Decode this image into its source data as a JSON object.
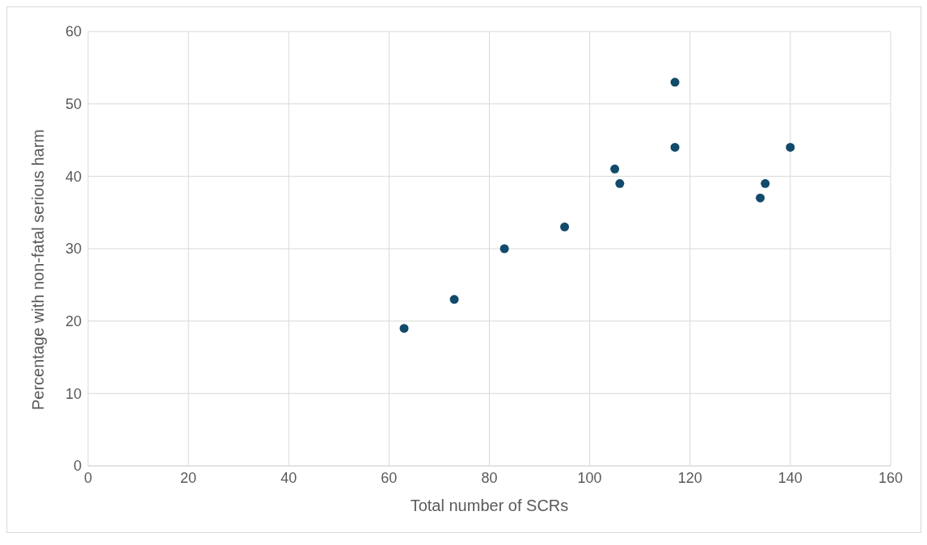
{
  "chart_data": {
    "type": "scatter",
    "xlabel": "Total  number of SCRs",
    "ylabel": "Percentage with non-fatal serious harm",
    "x": [
      63,
      73,
      83,
      95,
      105,
      106,
      117,
      117,
      134,
      135,
      140
    ],
    "values": [
      19,
      23,
      30,
      33,
      41,
      39,
      53,
      44,
      37,
      39,
      44
    ],
    "color": "#124a6b",
    "marker": "circle",
    "xlim": [
      0,
      160
    ],
    "xticks": [
      0,
      20,
      40,
      60,
      80,
      100,
      120,
      140,
      160
    ],
    "ylim": [
      0,
      60
    ],
    "yticks": [
      0,
      10,
      20,
      30,
      40,
      50,
      60
    ],
    "grid": true,
    "legend": false
  }
}
